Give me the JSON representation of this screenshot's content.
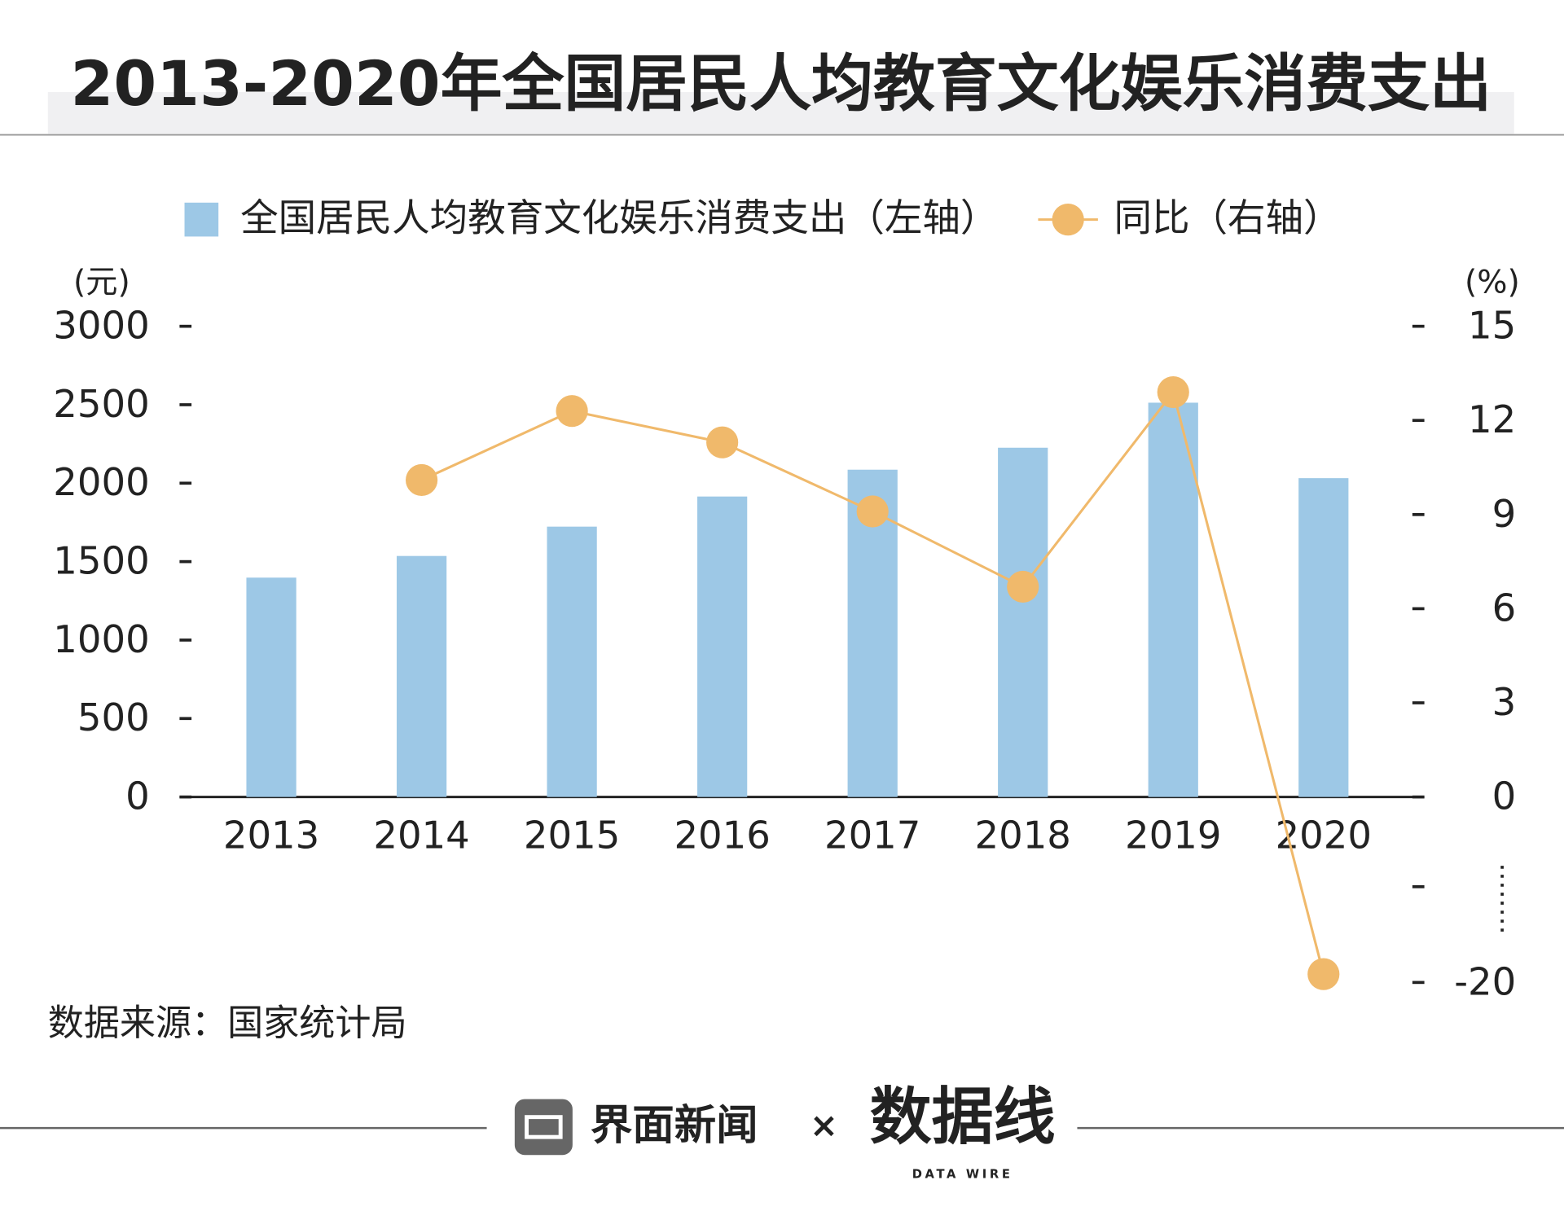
{
  "chart_data": {
    "type": "bar",
    "title": "2013-2020年全国居民人均教育文化娱乐消费支出",
    "y_unit": "(元)",
    "y2_unit": "(%)",
    "categories": [
      "2013",
      "2014",
      "2015",
      "2016",
      "2017",
      "2018",
      "2019",
      "2020"
    ],
    "series": [
      {
        "name": "全国居民人均教育文化娱乐消费支出（左轴）",
        "type": "bar",
        "color": "#9dc8e6",
        "values": [
          1398,
          1536,
          1723,
          1915,
          2086,
          2226,
          2513,
          2032
        ]
      },
      {
        "name": "同比（右轴）",
        "type": "line",
        "axis": "y2",
        "color": "#f0b96b",
        "values": [
          null,
          10.1,
          12.3,
          11.3,
          9.1,
          6.7,
          12.9,
          -19.1
        ]
      }
    ],
    "ylim": [
      0,
      3000
    ],
    "yticks": [
      0,
      500,
      1000,
      1500,
      2000,
      2500,
      3000
    ],
    "y2lim": [
      -20,
      15
    ],
    "y2ticks": [
      -20,
      0,
      3,
      6,
      9,
      12,
      15
    ],
    "y2_axis_break": true,
    "source": "数据来源：国家统计局",
    "footer": {
      "brand": "界面新闻",
      "times": "×",
      "logo": "数据线",
      "logo_sub": "DATA WIRE"
    }
  }
}
